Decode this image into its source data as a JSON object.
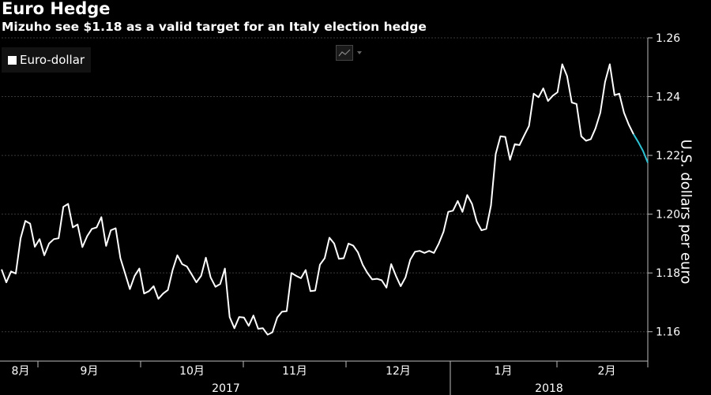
{
  "header": {
    "title": "Euro Hedge",
    "subtitle": "Mizuho see $1.18 as a valid target for an Italy election hedge"
  },
  "legend": {
    "label": "Euro-dollar"
  },
  "toolbar": {
    "chart_type_icon": "line-chart-icon"
  },
  "colors": {
    "background": "#000000",
    "line": "#ffffff",
    "line_tail": "#2ec4d6",
    "grid": "#3a3a3a",
    "axis": "#bbbbbb"
  },
  "chart_data": {
    "type": "line",
    "title": "Euro Hedge",
    "subtitle": "Mizuho see $1.18 as a valid target for an Italy election hedge",
    "ylabel": "U.S. dollars per euro",
    "xlabel": "",
    "ylim": [
      1.15,
      1.26
    ],
    "yticks": [
      "1.16",
      "1.18",
      "1.20",
      "1.22",
      "1.24",
      "1.26"
    ],
    "ytick_values": [
      1.16,
      1.18,
      1.2,
      1.22,
      1.24,
      1.26
    ],
    "month_labels": [
      "8月",
      "9月",
      "10月",
      "11月",
      "12月",
      "1月",
      "2月"
    ],
    "year_labels": [
      "2017",
      "2018"
    ],
    "grid": true,
    "legend_position": "top-left",
    "series": [
      {
        "name": "Euro-dollar",
        "values": [
          1.1812,
          1.1768,
          1.1805,
          1.1798,
          1.1918,
          1.1977,
          1.1968,
          1.1889,
          1.1915,
          1.186,
          1.19,
          1.1915,
          1.1918,
          1.2025,
          1.2035,
          1.1955,
          1.1965,
          1.1888,
          1.1925,
          1.195,
          1.1955,
          1.199,
          1.1892,
          1.1945,
          1.1952,
          1.185,
          1.1798,
          1.1745,
          1.179,
          1.1815,
          1.173,
          1.1738,
          1.1755,
          1.1712,
          1.173,
          1.1742,
          1.181,
          1.186,
          1.183,
          1.1822,
          1.1795,
          1.1768,
          1.179,
          1.1852,
          1.1785,
          1.1753,
          1.1762,
          1.1815,
          1.165,
          1.1612,
          1.165,
          1.1648,
          1.162,
          1.1655,
          1.161,
          1.1612,
          1.159,
          1.1598,
          1.1648,
          1.1668,
          1.167,
          1.18,
          1.179,
          1.1782,
          1.181,
          1.1738,
          1.174,
          1.1828,
          1.185,
          1.192,
          1.19,
          1.1848,
          1.185,
          1.19,
          1.1893,
          1.187,
          1.1828,
          1.18,
          1.1778,
          1.178,
          1.1775,
          1.175,
          1.183,
          1.179,
          1.1755,
          1.1785,
          1.1845,
          1.1872,
          1.1875,
          1.1868,
          1.1875,
          1.1868,
          1.19,
          1.194,
          1.2008,
          1.2012,
          1.2045,
          1.2008,
          1.2065,
          1.2035,
          1.1975,
          1.1945,
          1.195,
          1.203,
          1.2205,
          1.2265,
          1.2263,
          1.2185,
          1.2238,
          1.2235,
          1.2268,
          1.23,
          1.241,
          1.2398,
          1.2428,
          1.2385,
          1.2403,
          1.2415,
          1.251,
          1.247,
          1.238,
          1.2375,
          1.2265,
          1.225,
          1.2255,
          1.2292,
          1.2345,
          1.245,
          1.251,
          1.2405,
          1.241,
          1.2345,
          1.2305,
          1.2272,
          1.2245,
          1.2215,
          1.2175
        ]
      }
    ],
    "tail_start_index": 133
  }
}
